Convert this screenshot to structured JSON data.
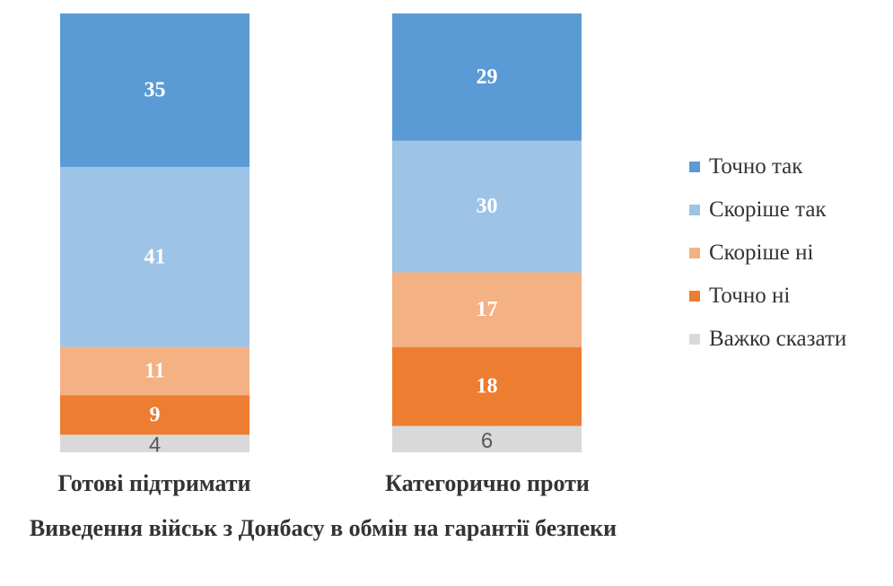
{
  "chart_data": {
    "type": "bar",
    "stacked": true,
    "categories": [
      "Готові підтримати",
      "Категорично проти"
    ],
    "xlabel": "Виведення військ з Донбасу в обмін на гарантії безпеки",
    "series": [
      {
        "name": "Точно так",
        "color": "#5b9bd5",
        "values": [
          35,
          29
        ]
      },
      {
        "name": "Скоріше так",
        "color": "#9dc3e6",
        "values": [
          41,
          30
        ]
      },
      {
        "name": "Скоріше ні",
        "color": "#f4b183",
        "values": [
          11,
          17
        ]
      },
      {
        "name": "Точно ні",
        "color": "#ed7d31",
        "values": [
          9,
          18
        ]
      },
      {
        "name": "Важко сказати",
        "color": "#d9d9d9",
        "values": [
          4,
          6
        ]
      }
    ],
    "legend_position": "right",
    "grid": false
  }
}
